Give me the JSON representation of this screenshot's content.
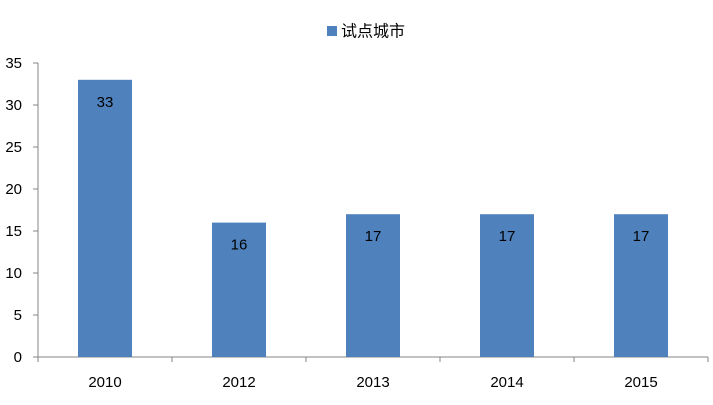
{
  "chart_data": {
    "type": "bar",
    "categories": [
      "2010",
      "2012",
      "2013",
      "2014",
      "2015"
    ],
    "series": [
      {
        "name": "试点城市",
        "values": [
          33,
          16,
          17,
          17,
          17
        ],
        "color": "#4F81BD"
      }
    ],
    "data_labels": [
      "33",
      "16",
      "17",
      "17",
      "17"
    ],
    "ylim": [
      0,
      35
    ],
    "yticks": [
      0,
      5,
      10,
      15,
      20,
      25,
      30,
      35
    ],
    "grid": false,
    "legend_position": "top"
  }
}
